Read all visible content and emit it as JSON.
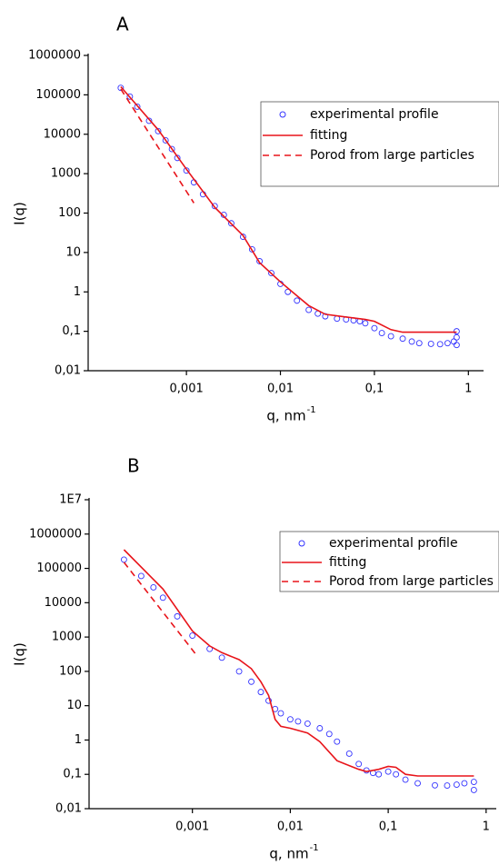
{
  "chart_data": [
    {
      "type": "scatter",
      "panel_label": "A",
      "x_label": "q, nm",
      "x_label_exponent": "-1",
      "y_label": "I(q)",
      "log_x": true,
      "log_y": true,
      "legend": "upper right",
      "xlim": [
        9e-05,
        1.45
      ],
      "ylim": [
        0.01,
        1000000
      ],
      "xticks": [
        {
          "value": 0.001,
          "label": "0,001"
        },
        {
          "value": 0.01,
          "label": "0,01"
        },
        {
          "value": 0.1,
          "label": "0,1"
        },
        1
      ],
      "yticks": [
        {
          "value": 0.01,
          "label": "0,01"
        },
        {
          "value": 0.1,
          "label": "0,1"
        },
        1,
        10,
        100,
        1000,
        10000,
        100000,
        1000000
      ],
      "series": [
        {
          "name": "experimental profile",
          "type": "scatter",
          "color": "#3333ff",
          "x": [
            0.0002,
            0.00025,
            0.0003,
            0.0004,
            0.0005,
            0.0006,
            0.0007,
            0.0008,
            0.001,
            0.0012,
            0.0015,
            0.002,
            0.0025,
            0.003,
            0.004,
            0.005,
            0.006,
            0.008,
            0.01,
            0.012,
            0.015,
            0.02,
            0.025,
            0.03,
            0.04,
            0.05,
            0.06,
            0.07,
            0.08,
            0.1,
            0.12,
            0.15,
            0.2,
            0.25,
            0.3,
            0.4,
            0.5,
            0.6,
            0.7,
            0.75,
            0.75,
            0.75
          ],
          "values": [
            150000,
            90000,
            50000,
            22000,
            12000,
            7000,
            4200,
            2500,
            1200,
            600,
            300,
            150,
            90,
            55,
            25,
            12,
            6,
            3,
            1.6,
            1.0,
            0.6,
            0.35,
            0.28,
            0.24,
            0.21,
            0.2,
            0.19,
            0.18,
            0.16,
            0.12,
            0.09,
            0.075,
            0.065,
            0.055,
            0.05,
            0.048,
            0.047,
            0.05,
            0.055,
            0.07,
            0.1,
            0.045
          ]
        },
        {
          "name": "fitting",
          "type": "line",
          "color": "#e8141a",
          "x": [
            0.0002,
            0.0005,
            0.001,
            0.002,
            0.004,
            0.006,
            0.01,
            0.015,
            0.02,
            0.03,
            0.05,
            0.08,
            0.1,
            0.15,
            0.2,
            0.3,
            0.75
          ],
          "values": [
            160000,
            13000,
            1300,
            140,
            27,
            5.5,
            1.8,
            0.8,
            0.45,
            0.27,
            0.23,
            0.2,
            0.18,
            0.11,
            0.095,
            0.095,
            0.095
          ]
        },
        {
          "name": "Porod from large particles",
          "type": "line",
          "dashed": true,
          "color": "#e8141a",
          "x": [
            0.0002,
            0.0012
          ],
          "values": [
            140000,
            180
          ]
        }
      ]
    },
    {
      "type": "scatter",
      "panel_label": "B",
      "x_label": "q, nm",
      "x_label_exponent": "-1",
      "y_label": "I(q)",
      "log_x": true,
      "log_y": true,
      "legend": "upper right",
      "xlim": [
        8.8e-05,
        1.27
      ],
      "ylim": [
        0.01,
        10000000
      ],
      "xticks": [
        {
          "value": 0.001,
          "label": "0,001"
        },
        {
          "value": 0.01,
          "label": "0,01"
        },
        {
          "value": 0.1,
          "label": "0,1"
        },
        1
      ],
      "yticks": [
        {
          "value": 0.01,
          "label": "0,01"
        },
        {
          "value": 0.1,
          "label": "0,1"
        },
        1,
        10,
        100,
        1000,
        10000,
        100000,
        1000000,
        {
          "value": 10000000,
          "label": "1E7"
        }
      ],
      "series": [
        {
          "name": "experimental profile",
          "type": "scatter",
          "color": "#3333ff",
          "x": [
            0.0002,
            0.0003,
            0.0004,
            0.0005,
            0.0007,
            0.001,
            0.0015,
            0.002,
            0.003,
            0.004,
            0.005,
            0.006,
            0.007,
            0.008,
            0.01,
            0.012,
            0.015,
            0.02,
            0.025,
            0.03,
            0.04,
            0.05,
            0.06,
            0.07,
            0.08,
            0.1,
            0.12,
            0.15,
            0.2,
            0.3,
            0.4,
            0.5,
            0.6,
            0.75,
            0.75
          ],
          "values": [
            180000,
            60000,
            28000,
            14000,
            4000,
            1100,
            450,
            250,
            100,
            50,
            25,
            14,
            8,
            6,
            4,
            3.5,
            3,
            2.2,
            1.5,
            0.9,
            0.4,
            0.2,
            0.13,
            0.11,
            0.1,
            0.12,
            0.1,
            0.07,
            0.055,
            0.048,
            0.047,
            0.05,
            0.055,
            0.06,
            0.035
          ]
        },
        {
          "name": "fitting",
          "type": "line",
          "color": "#e8141a",
          "x": [
            0.0002,
            0.0005,
            0.001,
            0.0015,
            0.002,
            0.003,
            0.004,
            0.005,
            0.006,
            0.007,
            0.008,
            0.01,
            0.015,
            0.02,
            0.03,
            0.04,
            0.05,
            0.06,
            0.08,
            0.1,
            0.12,
            0.15,
            0.2,
            0.75
          ],
          "values": [
            350000,
            25000,
            1500,
            550,
            350,
            220,
            120,
            50,
            20,
            4,
            2.5,
            2.2,
            1.6,
            0.9,
            0.25,
            0.18,
            0.14,
            0.12,
            0.14,
            0.17,
            0.16,
            0.1,
            0.09,
            0.09
          ]
        },
        {
          "name": "Porod from large particles",
          "type": "line",
          "dashed": true,
          "color": "#e8141a",
          "x": [
            0.0002,
            0.0011
          ],
          "values": [
            150000,
            300
          ]
        }
      ]
    }
  ]
}
